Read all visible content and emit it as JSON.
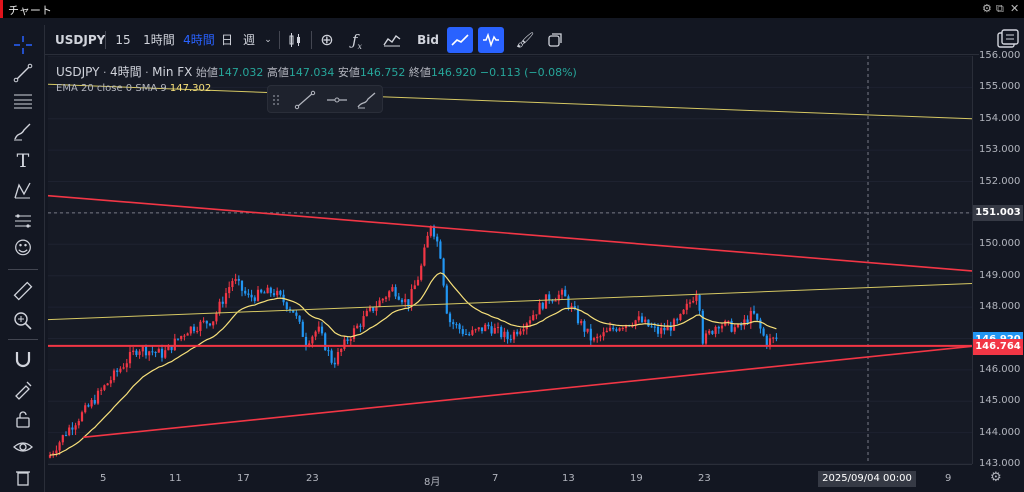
{
  "window": {
    "title": "チャート"
  },
  "toolbar": {
    "symbol": "USDJPY",
    "intervals": [
      "15分",
      "1時間",
      "4時間",
      "日",
      "週"
    ],
    "active_interval": "4時間",
    "price_type": "Bid"
  },
  "legend": {
    "symbol": "USDJPY",
    "interval": "4時間",
    "source": "Min FX",
    "open_label": "始値",
    "open": "147.032",
    "high_label": "高値",
    "high": "147.034",
    "low_label": "安値",
    "low": "146.752",
    "close_label": "終値",
    "close": "146.920",
    "change": "−0.113 (−0.08%)",
    "ema_label": "EMA 20 close 0 SMA 9",
    "ema_value": "147.302"
  },
  "price_scale": {
    "ticks": [
      "156.000",
      "155.000",
      "154.000",
      "153.000",
      "152.000",
      "151.000",
      "150.000",
      "149.000",
      "148.000",
      "147.000",
      "146.000",
      "145.000",
      "144.000",
      "143.000"
    ],
    "crosshair_price": "151.003",
    "last_price": "146.920",
    "line_price": "146.764",
    "last_color": "#2196f3",
    "line_color": "#f23645"
  },
  "time_scale": {
    "ticks": [
      "5",
      "11",
      "17",
      "23",
      "8月",
      "7",
      "13",
      "19",
      "23",
      "9",
      "9"
    ],
    "crosshair_time": "2025/09/04   00:00"
  },
  "colors": {
    "up": "#f23645",
    "down": "#2196f3",
    "ema": "#f7e07a",
    "trend": "#f23645"
  },
  "icons": [
    "crosshair-icon",
    "trend-line-icon",
    "fib-icon",
    "brush-icon",
    "text-icon",
    "pattern-icon",
    "forecast-icon",
    "emoji-icon",
    "ruler-icon",
    "zoom-icon",
    "magnet-icon",
    "lock-draw-icon",
    "lock-icon",
    "eye-icon",
    "trash-icon"
  ]
}
